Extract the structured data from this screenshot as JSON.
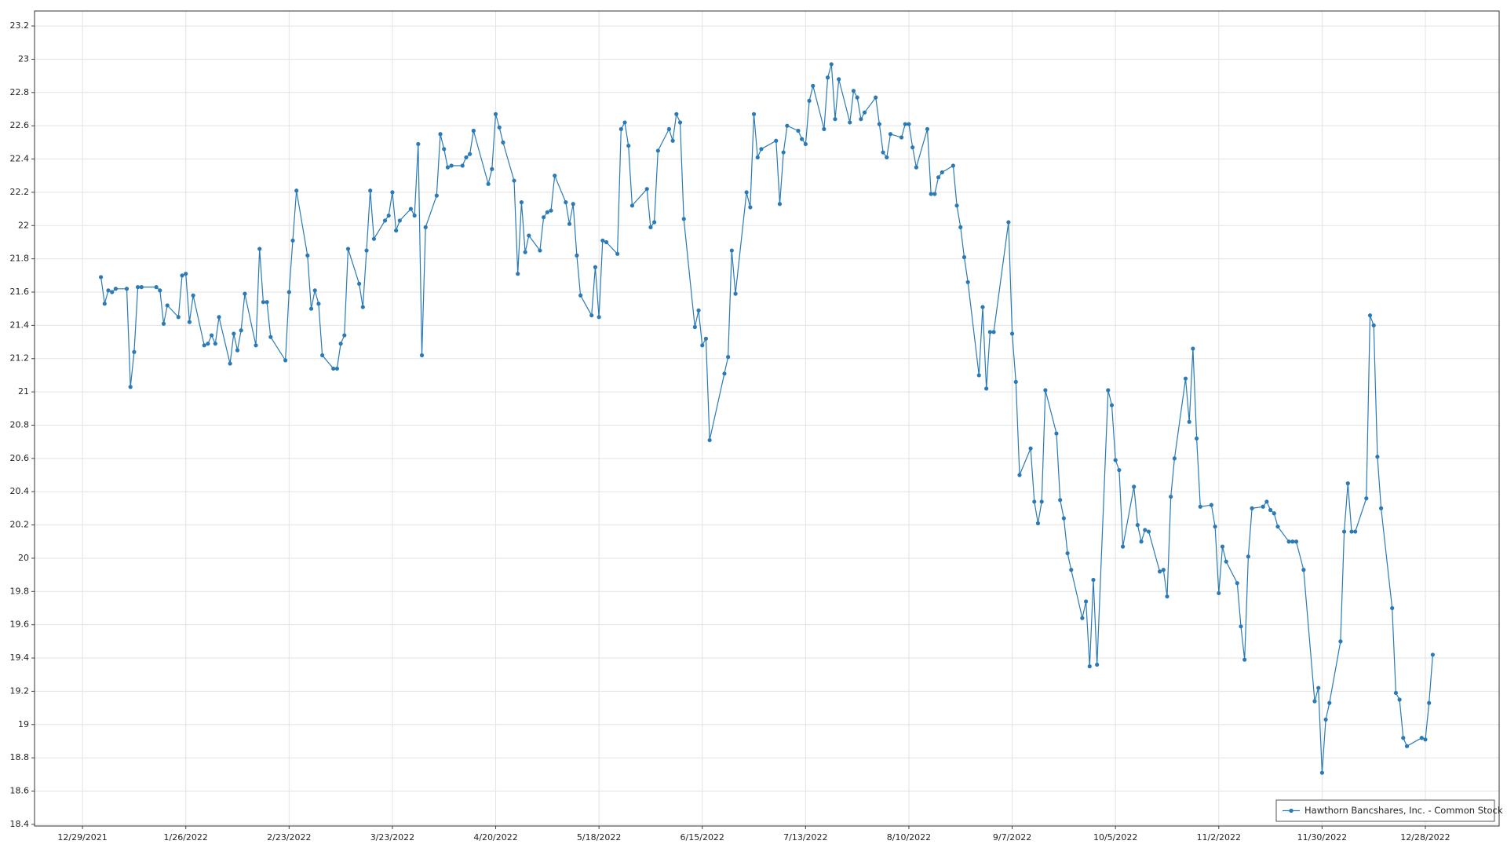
{
  "chart_data": {
    "type": "line",
    "x": [
      "1/3/2022",
      "1/4/2022",
      "1/5/2022",
      "1/6/2022",
      "1/7/2022",
      "1/10/2022",
      "1/11/2022",
      "1/12/2022",
      "1/13/2022",
      "1/14/2022",
      "1/18/2022",
      "1/19/2022",
      "1/20/2022",
      "1/21/2022",
      "1/24/2022",
      "1/25/2022",
      "1/26/2022",
      "1/27/2022",
      "1/28/2022",
      "1/31/2022",
      "2/1/2022",
      "2/2/2022",
      "2/3/2022",
      "2/4/2022",
      "2/7/2022",
      "2/8/2022",
      "2/9/2022",
      "2/10/2022",
      "2/11/2022",
      "2/14/2022",
      "2/15/2022",
      "2/16/2022",
      "2/17/2022",
      "2/18/2022",
      "2/22/2022",
      "2/23/2022",
      "2/24/2022",
      "2/25/2022",
      "2/28/2022",
      "3/1/2022",
      "3/2/2022",
      "3/3/2022",
      "3/4/2022",
      "3/7/2022",
      "3/8/2022",
      "3/9/2022",
      "3/10/2022",
      "3/11/2022",
      "3/14/2022",
      "3/15/2022",
      "3/16/2022",
      "3/17/2022",
      "3/18/2022",
      "3/21/2022",
      "3/22/2022",
      "3/23/2022",
      "3/24/2022",
      "3/25/2022",
      "3/28/2022",
      "3/29/2022",
      "3/30/2022",
      "3/31/2022",
      "4/1/2022",
      "4/4/2022",
      "4/5/2022",
      "4/6/2022",
      "4/7/2022",
      "4/8/2022",
      "4/11/2022",
      "4/12/2022",
      "4/13/2022",
      "4/14/2022",
      "4/18/2022",
      "4/19/2022",
      "4/20/2022",
      "4/21/2022",
      "4/22/2022",
      "4/25/2022",
      "4/26/2022",
      "4/27/2022",
      "4/28/2022",
      "4/29/2022",
      "5/2/2022",
      "5/3/2022",
      "5/4/2022",
      "5/5/2022",
      "5/6/2022",
      "5/9/2022",
      "5/10/2022",
      "5/11/2022",
      "5/12/2022",
      "5/13/2022",
      "5/16/2022",
      "5/17/2022",
      "5/18/2022",
      "5/19/2022",
      "5/20/2022",
      "5/23/2022",
      "5/24/2022",
      "5/25/2022",
      "5/26/2022",
      "5/27/2022",
      "5/31/2022",
      "6/1/2022",
      "6/2/2022",
      "6/3/2022",
      "6/6/2022",
      "6/7/2022",
      "6/8/2022",
      "6/9/2022",
      "6/10/2022",
      "6/13/2022",
      "6/14/2022",
      "6/15/2022",
      "6/16/2022",
      "6/17/2022",
      "6/21/2022",
      "6/22/2022",
      "6/23/2022",
      "6/24/2022",
      "6/27/2022",
      "6/28/2022",
      "6/29/2022",
      "6/30/2022",
      "7/1/2022",
      "7/5/2022",
      "7/6/2022",
      "7/7/2022",
      "7/8/2022",
      "7/11/2022",
      "7/12/2022",
      "7/13/2022",
      "7/14/2022",
      "7/15/2022",
      "7/18/2022",
      "7/19/2022",
      "7/20/2022",
      "7/21/2022",
      "7/22/2022",
      "7/25/2022",
      "7/26/2022",
      "7/27/2022",
      "7/28/2022",
      "7/29/2022",
      "8/1/2022",
      "8/2/2022",
      "8/3/2022",
      "8/4/2022",
      "8/5/2022",
      "8/8/2022",
      "8/9/2022",
      "8/10/2022",
      "8/11/2022",
      "8/12/2022",
      "8/15/2022",
      "8/16/2022",
      "8/17/2022",
      "8/18/2022",
      "8/19/2022",
      "8/22/2022",
      "8/23/2022",
      "8/24/2022",
      "8/25/2022",
      "8/26/2022",
      "8/29/2022",
      "8/30/2022",
      "8/31/2022",
      "9/1/2022",
      "9/2/2022",
      "9/6/2022",
      "9/7/2022",
      "9/8/2022",
      "9/9/2022",
      "9/12/2022",
      "9/13/2022",
      "9/14/2022",
      "9/15/2022",
      "9/16/2022",
      "9/19/2022",
      "9/20/2022",
      "9/21/2022",
      "9/22/2022",
      "9/23/2022",
      "9/26/2022",
      "9/27/2022",
      "9/28/2022",
      "9/29/2022",
      "9/30/2022",
      "10/3/2022",
      "10/4/2022",
      "10/5/2022",
      "10/6/2022",
      "10/7/2022",
      "10/10/2022",
      "10/11/2022",
      "10/12/2022",
      "10/13/2022",
      "10/14/2022",
      "10/17/2022",
      "10/18/2022",
      "10/19/2022",
      "10/20/2022",
      "10/21/2022",
      "10/24/2022",
      "10/25/2022",
      "10/26/2022",
      "10/27/2022",
      "10/28/2022",
      "10/31/2022",
      "11/1/2022",
      "11/2/2022",
      "11/3/2022",
      "11/4/2022",
      "11/7/2022",
      "11/8/2022",
      "11/9/2022",
      "11/10/2022",
      "11/11/2022",
      "11/14/2022",
      "11/15/2022",
      "11/16/2022",
      "11/17/2022",
      "11/18/2022",
      "11/21/2022",
      "11/22/2022",
      "11/23/2022",
      "11/25/2022",
      "11/28/2022",
      "11/29/2022",
      "11/30/2022",
      "12/1/2022",
      "12/2/2022",
      "12/5/2022",
      "12/6/2022",
      "12/7/2022",
      "12/8/2022",
      "12/9/2022",
      "12/12/2022",
      "12/13/2022",
      "12/14/2022",
      "12/15/2022",
      "12/16/2022",
      "12/19/2022",
      "12/20/2022",
      "12/21/2022",
      "12/22/2022",
      "12/23/2022",
      "12/27/2022",
      "12/28/2022",
      "12/29/2022",
      "12/30/2022"
    ],
    "series": [
      {
        "name": "Hawthorn Bancshares, Inc. - Common Stock",
        "color": "#2a7ab5",
        "values": [
          21.69,
          21.53,
          21.61,
          21.6,
          21.62,
          21.62,
          21.03,
          21.24,
          21.63,
          21.63,
          21.63,
          21.61,
          21.41,
          21.52,
          21.45,
          21.7,
          21.71,
          21.42,
          21.58,
          21.28,
          21.29,
          21.34,
          21.29,
          21.45,
          21.17,
          21.35,
          21.25,
          21.37,
          21.59,
          21.28,
          21.86,
          21.54,
          21.54,
          21.33,
          21.19,
          21.6,
          21.91,
          22.21,
          21.82,
          21.5,
          21.61,
          21.53,
          21.22,
          21.14,
          21.14,
          21.29,
          21.34,
          21.86,
          21.65,
          21.51,
          21.85,
          22.21,
          21.92,
          22.03,
          22.06,
          22.2,
          21.97,
          22.03,
          22.1,
          22.06,
          22.49,
          21.22,
          21.99,
          22.18,
          22.55,
          22.46,
          22.35,
          22.36,
          22.36,
          22.41,
          22.43,
          22.57,
          22.25,
          22.34,
          22.67,
          22.59,
          22.5,
          22.27,
          21.71,
          22.14,
          21.84,
          21.94,
          21.85,
          22.05,
          22.08,
          22.09,
          22.3,
          22.14,
          22.01,
          22.13,
          21.82,
          21.58,
          21.46,
          21.75,
          21.45,
          21.91,
          21.9,
          21.83,
          22.58,
          22.62,
          22.48,
          22.12,
          22.22,
          21.99,
          22.02,
          22.45,
          22.58,
          22.51,
          22.67,
          22.62,
          22.04,
          21.39,
          21.49,
          21.28,
          21.32,
          20.71,
          21.11,
          21.21,
          21.85,
          21.59,
          22.2,
          22.11,
          22.67,
          22.41,
          22.46,
          22.51,
          22.13,
          22.44,
          22.6,
          22.57,
          22.52,
          22.49,
          22.75,
          22.84,
          22.58,
          22.89,
          22.97,
          22.64,
          22.88,
          22.62,
          22.81,
          22.77,
          22.64,
          22.68,
          22.77,
          22.61,
          22.44,
          22.41,
          22.55,
          22.53,
          22.61,
          22.61,
          22.47,
          22.35,
          22.58,
          22.19,
          22.19,
          22.29,
          22.32,
          22.36,
          22.12,
          21.99,
          21.81,
          21.66,
          21.1,
          21.51,
          21.02,
          21.36,
          21.36,
          22.02,
          21.35,
          21.06,
          20.5,
          20.66,
          20.34,
          20.21,
          20.34,
          21.01,
          20.75,
          20.35,
          20.24,
          20.03,
          19.93,
          19.64,
          19.74,
          19.35,
          19.87,
          19.36,
          21.01,
          20.92,
          20.59,
          20.53,
          20.07,
          20.43,
          20.2,
          20.1,
          20.17,
          20.16,
          19.92,
          19.93,
          19.77,
          20.37,
          20.6,
          21.08,
          20.82,
          21.26,
          20.72,
          20.31,
          20.32,
          20.19,
          19.79,
          20.07,
          19.98,
          19.85,
          19.59,
          19.39,
          20.01,
          20.3,
          20.31,
          20.34,
          20.29,
          20.27,
          20.19,
          20.1,
          20.1,
          20.1,
          19.93,
          19.14,
          19.22,
          18.71,
          19.03,
          19.13,
          19.5,
          20.16,
          20.45,
          20.16,
          20.16,
          20.36,
          21.46,
          21.4,
          20.61,
          20.3,
          19.7,
          19.19,
          19.15,
          18.92,
          18.87,
          18.92,
          18.91,
          19.13,
          19.42
        ]
      }
    ],
    "xlim": [
      "12/16/2021",
      "1/17/2023"
    ],
    "xticks": [
      "12/29/2021",
      "1/26/2022",
      "2/23/2022",
      "3/23/2022",
      "4/20/2022",
      "5/18/2022",
      "6/15/2022",
      "7/13/2022",
      "8/10/2022",
      "9/7/2022",
      "10/5/2022",
      "11/2/2022",
      "11/30/2022",
      "12/28/2022"
    ],
    "ylim": [
      18.39,
      23.29
    ],
    "yticks": [
      18.4,
      18.6,
      18.8,
      19,
      19.2,
      19.4,
      19.6,
      19.8,
      20,
      20.2,
      20.4,
      20.6,
      20.8,
      21,
      21.2,
      21.4,
      21.6,
      21.8,
      22,
      22.2,
      22.4,
      22.6,
      22.8,
      23,
      23.2
    ],
    "grid": true,
    "legend": "lower right"
  }
}
